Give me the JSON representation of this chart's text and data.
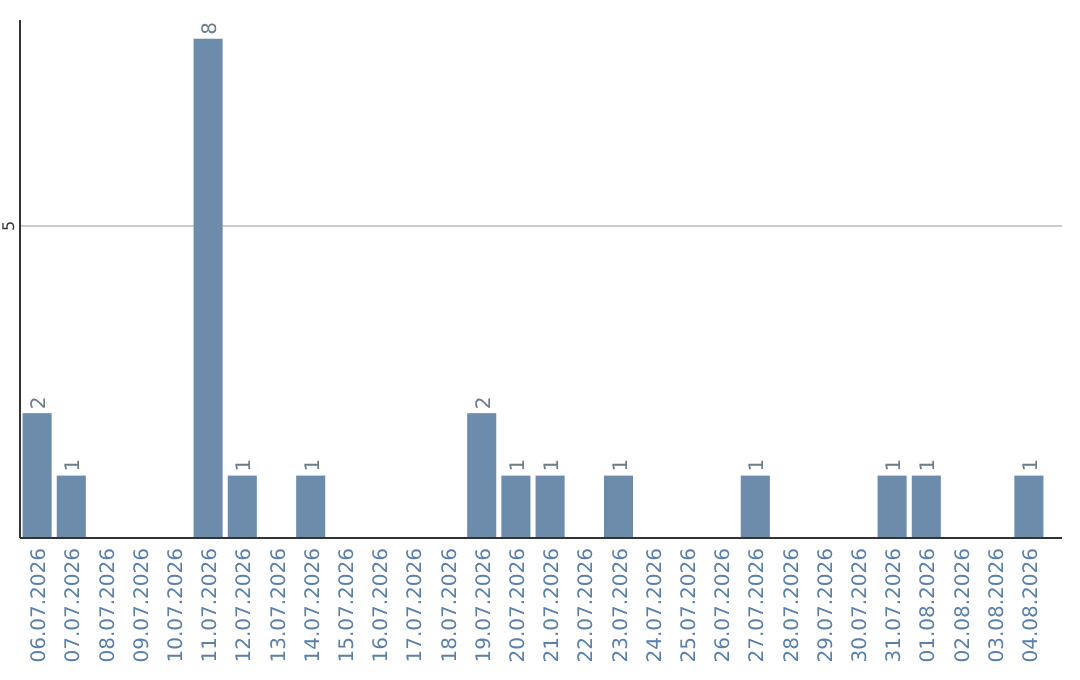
{
  "chart_data": {
    "type": "bar",
    "categories": [
      "06.07.2026",
      "07.07.2026",
      "08.07.2026",
      "09.07.2026",
      "10.07.2026",
      "11.07.2026",
      "12.07.2026",
      "13.07.2026",
      "14.07.2026",
      "15.07.2026",
      "16.07.2026",
      "17.07.2026",
      "18.07.2026",
      "19.07.2026",
      "20.07.2026",
      "21.07.2026",
      "22.07.2026",
      "23.07.2026",
      "24.07.2026",
      "25.07.2026",
      "26.07.2026",
      "27.07.2026",
      "28.07.2026",
      "29.07.2026",
      "30.07.2026",
      "31.07.2026",
      "01.08.2026",
      "02.08.2026",
      "03.08.2026",
      "04.08.2026"
    ],
    "values": [
      2,
      1,
      0,
      0,
      0,
      8,
      1,
      0,
      1,
      0,
      0,
      0,
      0,
      2,
      1,
      1,
      0,
      1,
      0,
      0,
      0,
      1,
      0,
      0,
      0,
      1,
      1,
      0,
      0,
      1
    ],
    "value_labels": [
      "2",
      "1",
      null,
      null,
      null,
      "8",
      "1",
      null,
      "1",
      null,
      null,
      null,
      null,
      "2",
      "1",
      "1",
      null,
      "1",
      null,
      null,
      null,
      "1",
      null,
      null,
      null,
      "1",
      "1",
      null,
      null,
      "1"
    ],
    "color": "#6d8cab",
    "ylim": [
      0,
      8.3
    ],
    "yticks": [
      5
    ],
    "grid": "y"
  }
}
